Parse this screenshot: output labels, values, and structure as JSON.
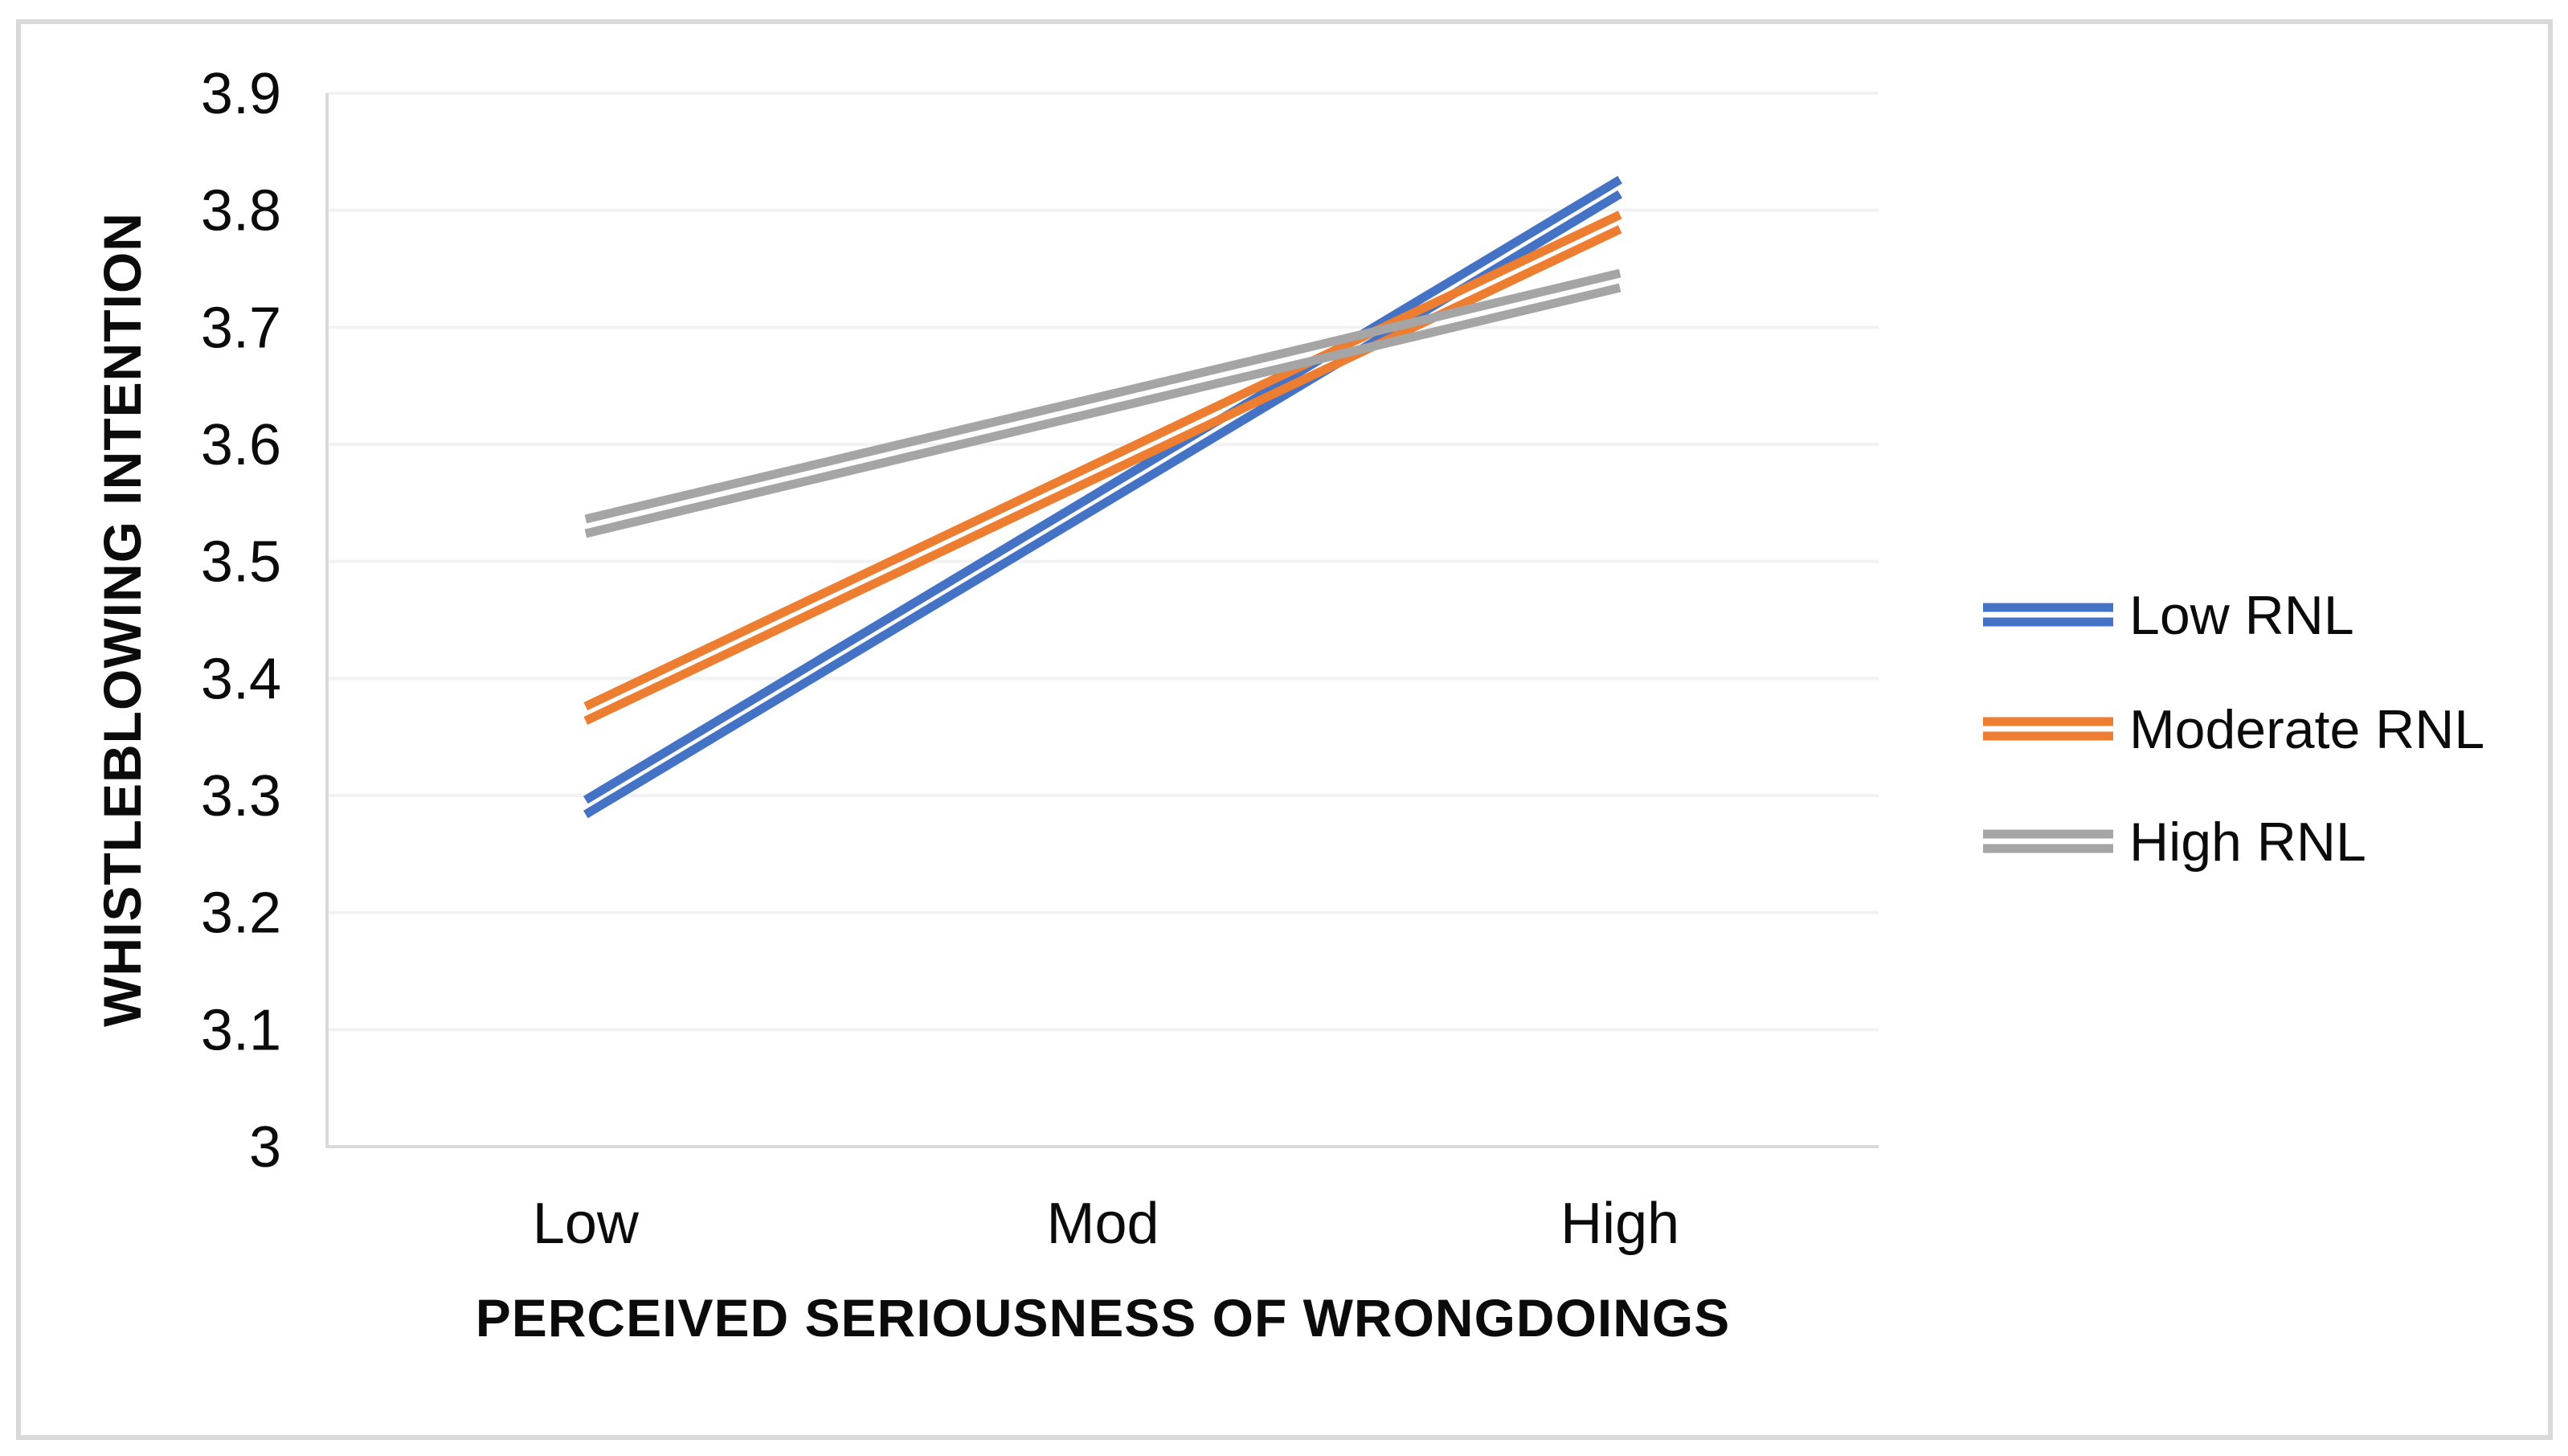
{
  "figure": {
    "background_color": "#ffffff",
    "border_color": "#d9d9d9"
  },
  "chart_data": {
    "type": "line",
    "line_style": "double-line",
    "title": "",
    "categories": [
      "Low",
      "Mod",
      "High"
    ],
    "xlabel": "PERCEIVED SERIOUSNESS OF WRONGDOINGS",
    "ylabel": "WHISTLEBLOWING INTENTION",
    "ylim": [
      3,
      3.9
    ],
    "ytick_step": 0.1,
    "ytick_labels": [
      "3",
      "3.1",
      "3.2",
      "3.3",
      "3.4",
      "3.5",
      "3.6",
      "3.7",
      "3.8",
      "3.9"
    ],
    "grid": "horizontal-only",
    "gridline_color": "#f2f2f2",
    "axis_line_color": "#d9d9d9",
    "legend_position": "right",
    "series": [
      {
        "name": "Low RNL",
        "color": "#4472C4",
        "values": [
          3.29,
          3.555,
          3.82
        ]
      },
      {
        "name": "Moderate RNL",
        "color": "#ED7D31",
        "values": [
          3.37,
          3.58,
          3.79
        ]
      },
      {
        "name": "High RNL",
        "color": "#A5A5A5",
        "values": [
          3.53,
          3.635,
          3.74
        ]
      }
    ]
  }
}
